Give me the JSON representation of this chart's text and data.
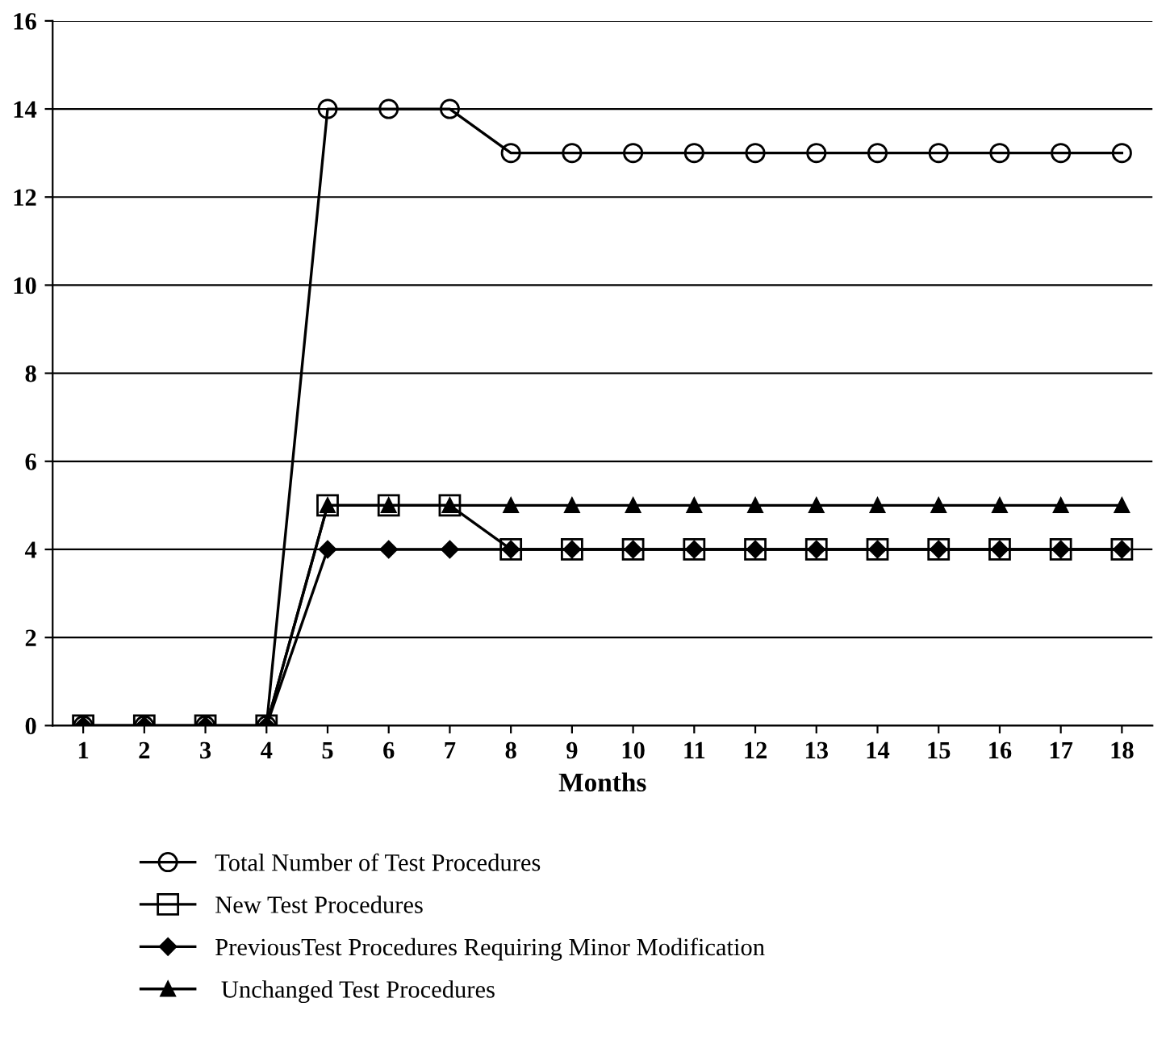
{
  "chart_data": {
    "type": "line",
    "xlabel": "Months",
    "categories": [
      "1",
      "2",
      "3",
      "4",
      "5",
      "6",
      "7",
      "8",
      "9",
      "10",
      "11",
      "12",
      "13",
      "14",
      "15",
      "16",
      "17",
      "18"
    ],
    "series": [
      {
        "name": "Total Number of Test Procedures",
        "color": "#000000",
        "marker": "circle",
        "values": [
          0,
          0,
          0,
          0,
          14,
          14,
          14,
          13,
          13,
          13,
          13,
          13,
          13,
          13,
          13,
          13,
          13,
          13
        ]
      },
      {
        "name": "New Test Procedures",
        "color": "#000000",
        "marker": "square",
        "values": [
          0,
          0,
          0,
          0,
          5,
          5,
          5,
          4,
          4,
          4,
          4,
          4,
          4,
          4,
          4,
          4,
          4,
          4
        ]
      },
      {
        "name": "PreviousTest Procedures Requiring Minor Modification",
        "color": "#000000",
        "marker": "diamond",
        "values": [
          0,
          0,
          0,
          0,
          4,
          4,
          4,
          4,
          4,
          4,
          4,
          4,
          4,
          4,
          4,
          4,
          4,
          4
        ]
      },
      {
        "name": " Unchanged Test Procedures",
        "color": "#000000",
        "marker": "triangle",
        "values": [
          0,
          0,
          0,
          0,
          5,
          5,
          5,
          5,
          5,
          5,
          5,
          5,
          5,
          5,
          5,
          5,
          5,
          5
        ]
      }
    ],
    "ylim": [
      0,
      16
    ],
    "yticks": [
      0,
      2,
      4,
      6,
      8,
      10,
      12,
      14,
      16
    ],
    "grid": "y",
    "legend": "bottom",
    "line_style": "solid"
  }
}
